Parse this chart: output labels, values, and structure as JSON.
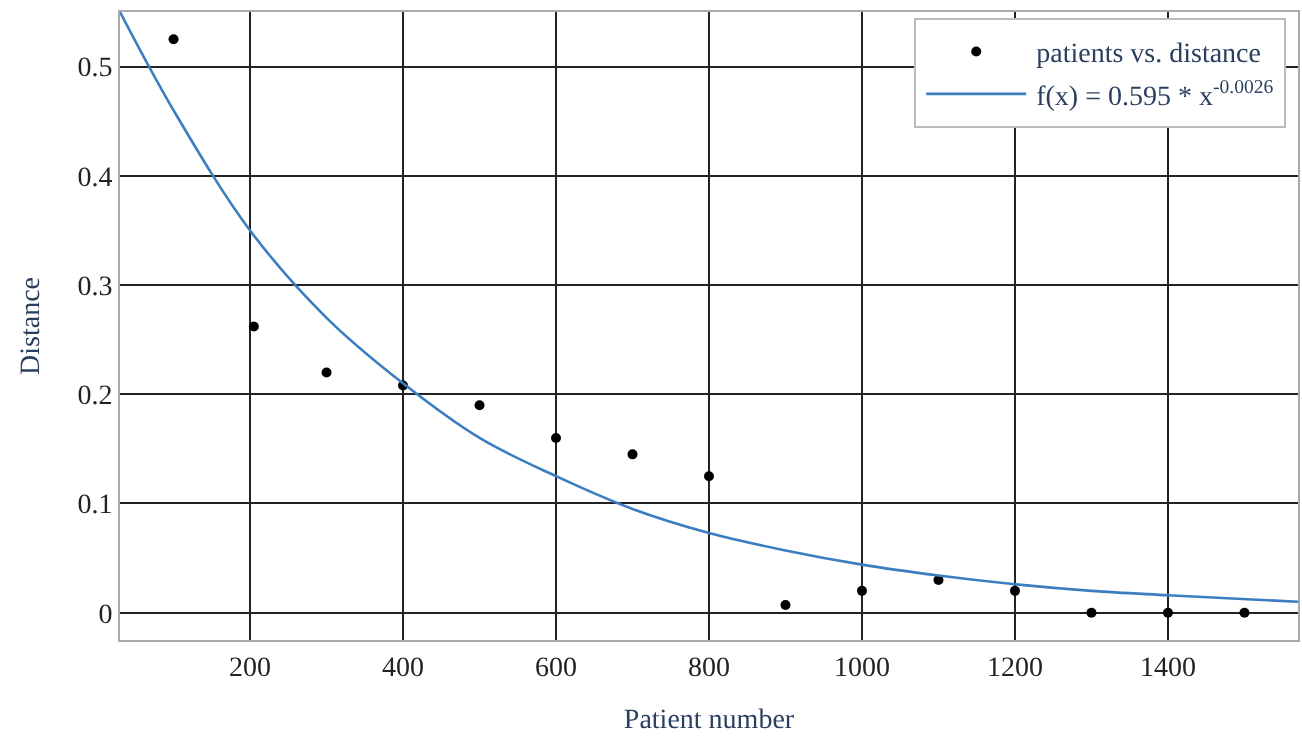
{
  "chart_data": {
    "type": "scatter",
    "xlabel": "Patient number",
    "ylabel": "Distance",
    "xlim": [
      30,
      1570
    ],
    "ylim": [
      -0.025,
      0.55
    ],
    "xticks": [
      200,
      400,
      600,
      800,
      1000,
      1200,
      1400
    ],
    "yticks": [
      0,
      0.1,
      0.2,
      0.3,
      0.4,
      0.5
    ],
    "grid": true,
    "legend": "top right",
    "series": [
      {
        "name": "patients vs. distance",
        "marker": "circle",
        "color": "#000000",
        "x": [
          100,
          205,
          300,
          400,
          500,
          600,
          700,
          800,
          900,
          1000,
          1100,
          1200,
          1300,
          1400,
          1500
        ],
        "values": [
          0.525,
          0.262,
          0.22,
          0.208,
          0.19,
          0.16,
          0.145,
          0.125,
          0.007,
          0.02,
          0.03,
          0.02,
          0,
          0,
          0
        ]
      },
      {
        "name": "f(x) = 0.595 * x$^{-0.0026}$",
        "type": "line",
        "marker": "none",
        "color": "#3a7dc0",
        "line_style": "solid",
        "x": [
          30,
          100,
          200,
          300,
          400,
          500,
          600,
          700,
          800,
          900,
          1000,
          1100,
          1200,
          1300,
          1400,
          1570
        ],
        "values": [
          0.55,
          0.46,
          0.35,
          0.27,
          0.21,
          0.16,
          0.125,
          0.095,
          0.073,
          0.057,
          0.044,
          0.034,
          0.026,
          0.02,
          0.016,
          0.01
        ]
      }
    ]
  }
}
